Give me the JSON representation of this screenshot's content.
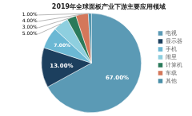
{
  "chart_data": {
    "type": "pie",
    "title": "2019年全球面板产业下游主要应用领域",
    "categories": [
      "电视",
      "显示器",
      "手机",
      "闹里",
      "计算机",
      "车载",
      "其他"
    ],
    "values": [
      67.0,
      13.0,
      7.0,
      5.0,
      3.0,
      4.0,
      1.0
    ],
    "value_labels": [
      "67.00%",
      "13.00%",
      "7.00%",
      "5.00%",
      "3.00%",
      "4.00%",
      "1.00%"
    ],
    "colors": [
      "#5b9ab5",
      "#1c3f5e",
      "#6bb8d4",
      "#8ecfdf",
      "#2a7a5a",
      "#d4775a",
      "#4a8fa8"
    ],
    "legend": "right",
    "data_labels": true
  }
}
